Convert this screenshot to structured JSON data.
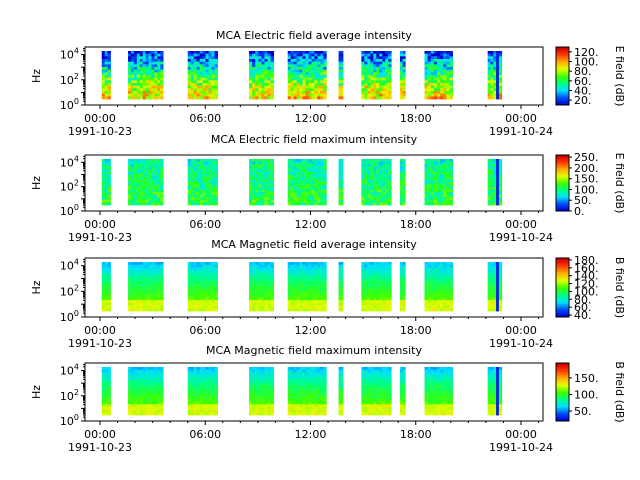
{
  "chart_data": [
    {
      "type": "heatmap",
      "title": "MCA  Electric field average intensity",
      "ylabel": "Hz",
      "colorbar_label": "E field (dB)",
      "colorbar_ticks": [
        "20.",
        "40.",
        "60.",
        "80.",
        "100.",
        "120."
      ],
      "colorbar_range": [
        10,
        130
      ],
      "yscale": "log",
      "ylim_exp": [
        0,
        4.6
      ],
      "y_tick_exps": [
        0,
        2,
        4
      ],
      "x_ticks": [
        {
          "hour": 0,
          "label": "00:00",
          "date": "1991-10-23"
        },
        {
          "hour": 6,
          "label": "06:00",
          "date": ""
        },
        {
          "hour": 12,
          "label": "12:00",
          "date": ""
        },
        {
          "hour": 18,
          "label": "18:00",
          "date": ""
        },
        {
          "hour": 24,
          "label": "00:00",
          "date": "1991-10-24"
        }
      ],
      "profile": "efield_avg"
    },
    {
      "type": "heatmap",
      "title": "MCA  Electric field maximum intensity",
      "ylabel": "Hz",
      "colorbar_label": "E field (dB)",
      "colorbar_ticks": [
        "0.",
        "50.",
        "100.",
        "150.",
        "200.",
        "250."
      ],
      "colorbar_range": [
        0,
        260
      ],
      "yscale": "log",
      "ylim_exp": [
        0,
        4.6
      ],
      "y_tick_exps": [
        0,
        2,
        4
      ],
      "x_ticks": [
        {
          "hour": 0,
          "label": "00:00",
          "date": "1991-10-23"
        },
        {
          "hour": 6,
          "label": "06:00",
          "date": ""
        },
        {
          "hour": 12,
          "label": "12:00",
          "date": ""
        },
        {
          "hour": 18,
          "label": "18:00",
          "date": ""
        },
        {
          "hour": 24,
          "label": "00:00",
          "date": "1991-10-24"
        }
      ],
      "profile": "efield_max"
    },
    {
      "type": "heatmap",
      "title": "MCA  Magnetic field average intensity",
      "ylabel": "Hz",
      "colorbar_label": "B field (dB)",
      "colorbar_ticks": [
        "40.",
        "60.",
        "80.",
        "100.",
        "120.",
        "140.",
        "160.",
        "180."
      ],
      "colorbar_range": [
        35,
        185
      ],
      "yscale": "log",
      "ylim_exp": [
        0,
        4.6
      ],
      "y_tick_exps": [
        0,
        2,
        4
      ],
      "x_ticks": [
        {
          "hour": 0,
          "label": "00:00",
          "date": "1991-10-23"
        },
        {
          "hour": 6,
          "label": "06:00",
          "date": ""
        },
        {
          "hour": 12,
          "label": "12:00",
          "date": ""
        },
        {
          "hour": 18,
          "label": "18:00",
          "date": ""
        },
        {
          "hour": 24,
          "label": "00:00",
          "date": "1991-10-24"
        }
      ],
      "profile": "bfield"
    },
    {
      "type": "heatmap",
      "title": "MCA  Magnetic field maximum intensity",
      "ylabel": "Hz",
      "colorbar_label": "B field (dB)",
      "colorbar_ticks": [
        "50.",
        "100.",
        "150."
      ],
      "colorbar_range": [
        20,
        195
      ],
      "yscale": "log",
      "ylim_exp": [
        0,
        4.6
      ],
      "y_tick_exps": [
        0,
        2,
        4
      ],
      "x_ticks": [
        {
          "hour": 0,
          "label": "00:00",
          "date": "1991-10-23"
        },
        {
          "hour": 6,
          "label": "06:00",
          "date": ""
        },
        {
          "hour": 12,
          "label": "12:00",
          "date": ""
        },
        {
          "hour": 18,
          "label": "18:00",
          "date": ""
        },
        {
          "hour": 24,
          "label": "00:00",
          "date": "1991-10-24"
        }
      ],
      "profile": "bfield"
    }
  ],
  "data_intervals_hours": [
    [
      0.1,
      0.6
    ],
    [
      1.6,
      3.6
    ],
    [
      5.0,
      6.7
    ],
    [
      8.5,
      9.9
    ],
    [
      10.7,
      12.9
    ],
    [
      13.6,
      13.85
    ],
    [
      14.9,
      16.6
    ],
    [
      17.1,
      17.4
    ],
    [
      18.5,
      20.1
    ],
    [
      22.1,
      22.9
    ]
  ],
  "colors": {
    "colormap": [
      "#0000cc",
      "#0050ff",
      "#00e0ff",
      "#00ff80",
      "#40ff00",
      "#e0ff00",
      "#ffb000",
      "#ff4000",
      "#cc0000"
    ],
    "axes": "#000000",
    "background": "#ffffff"
  }
}
